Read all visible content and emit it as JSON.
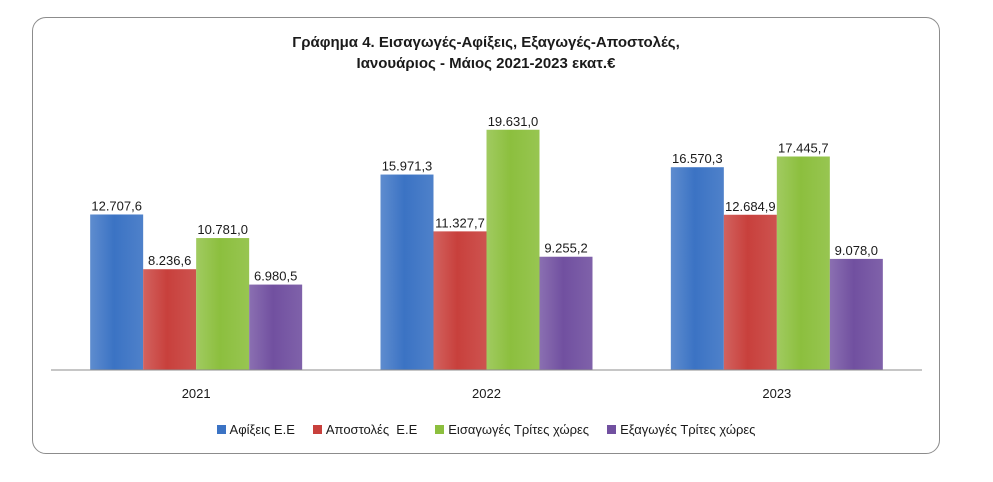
{
  "chart_data": {
    "type": "bar",
    "title_lines": [
      "Γράφημα 4. Εισαγωγές-Αφίξεις, Εξαγωγές-Αποστολές,",
      "Ιανουάριος - Μάιος 2021-2023 εκατ.€"
    ],
    "categories": [
      "2021",
      "2022",
      "2023"
    ],
    "series": [
      {
        "name": "Αφίξεις Ε.Ε",
        "color": "#3b73c4",
        "values": [
          12707.6,
          15971.3,
          16570.3
        ],
        "labels": [
          "12.707,6",
          "15.971,3",
          "16.570,3"
        ]
      },
      {
        "name": "Αποστολές  Ε.Ε",
        "color": "#c8403c",
        "values": [
          8236.6,
          11327.7,
          12684.9
        ],
        "labels": [
          "8.236,6",
          "11.327,7",
          "12.684,9"
        ]
      },
      {
        "name": "Εισαγωγές Τρίτες χώρες",
        "color": "#8cbf3e",
        "values": [
          10781.0,
          19631.0,
          17445.7
        ],
        "labels": [
          "10.781,0",
          "19.631,0",
          "17.445,7"
        ]
      },
      {
        "name": "Εξαγωγές Τρίτες χώρες",
        "color": "#7150a0",
        "values": [
          6980.5,
          9255.2,
          9078.0
        ],
        "labels": [
          "6.980,5",
          "9.255,2",
          "9.078,0"
        ]
      }
    ],
    "ylim": [
      0,
      21000
    ],
    "grid": false,
    "legend_position": "bottom"
  }
}
